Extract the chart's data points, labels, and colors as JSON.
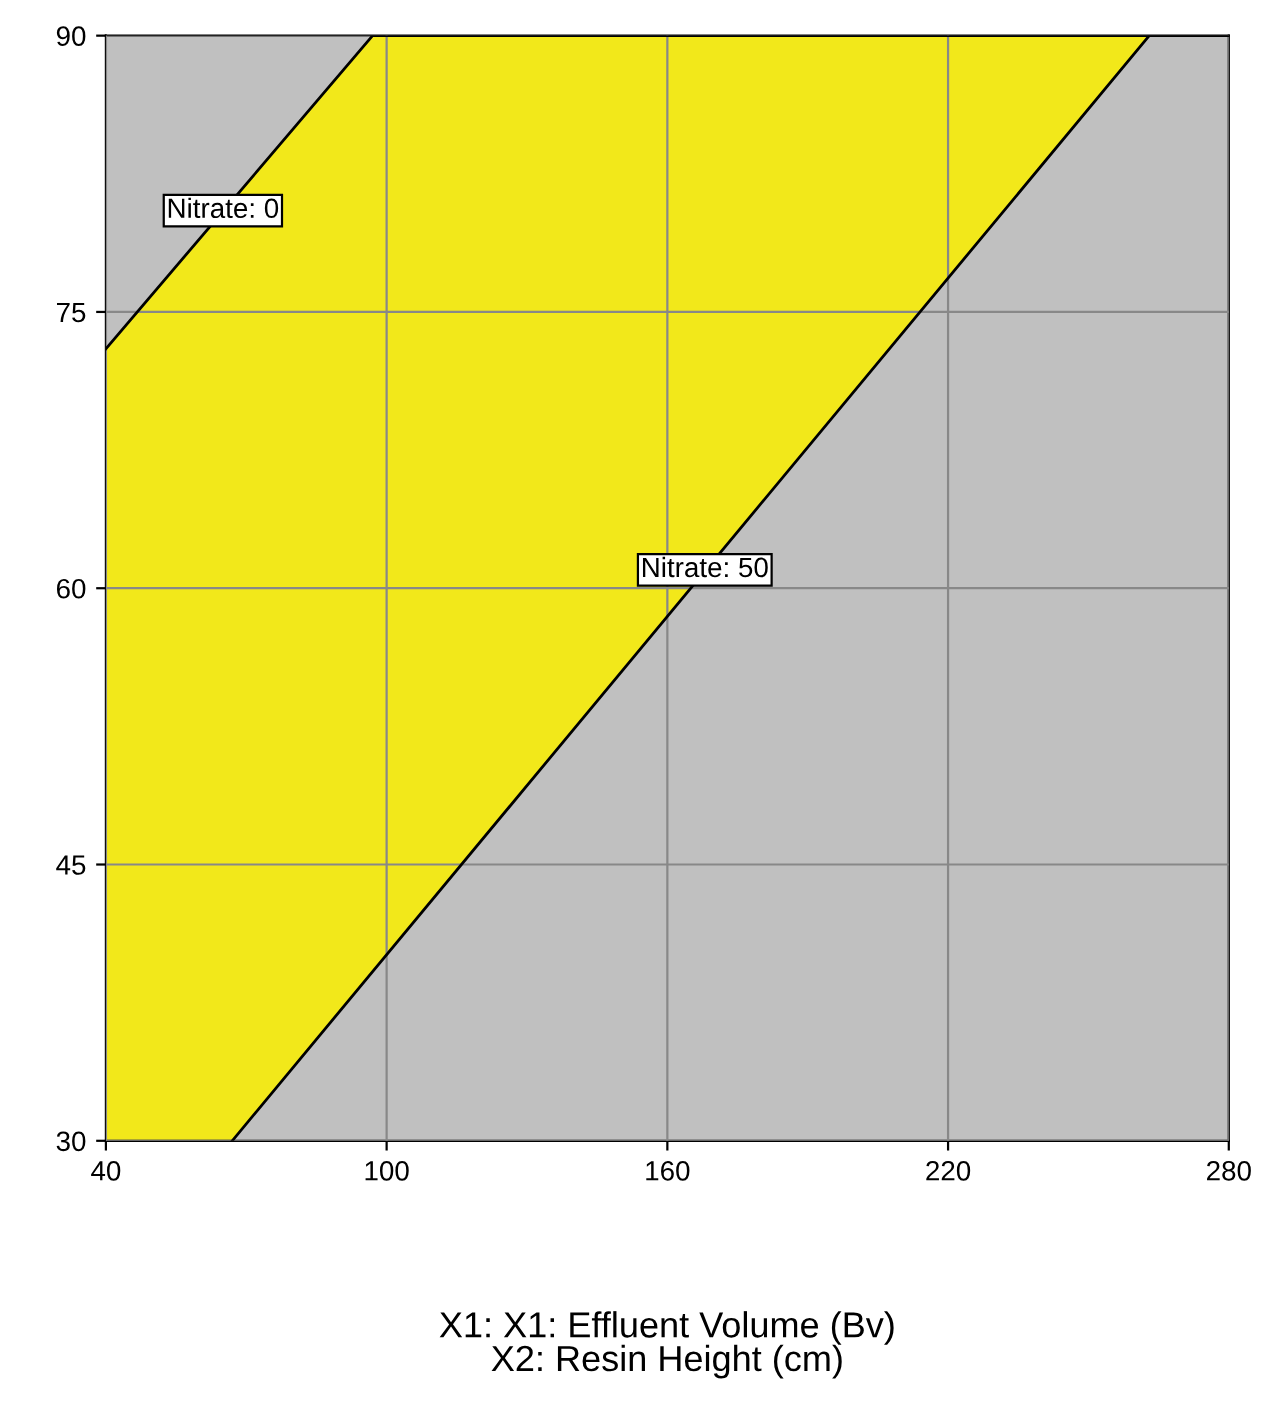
{
  "chart_data": {
    "type": "area",
    "xlabel": "X1: X1: Effluent Volume (Bv)\nX2: Resin Height (cm)",
    "xlim": [
      40,
      280
    ],
    "xticks": [
      40,
      100,
      160,
      220,
      280
    ],
    "ylim": [
      30,
      90
    ],
    "yticks": [
      30,
      45,
      60,
      75,
      90
    ],
    "grid": true,
    "legend": false,
    "series": [
      {
        "color": "#f2e81a",
        "x": [
          40,
          97,
          280
        ],
        "values": [
          73,
          90,
          90
        ]
      },
      {
        "color": "#c0c0c0",
        "x": [
          67,
          263,
          280
        ],
        "values": [
          30,
          90,
          90
        ]
      }
    ],
    "annotations": [
      {
        "text": "Nitrate: 0",
        "x": 65,
        "y": 80.5
      },
      {
        "text": "Nitrate: 50",
        "x": 168,
        "y": 61
      }
    ]
  }
}
